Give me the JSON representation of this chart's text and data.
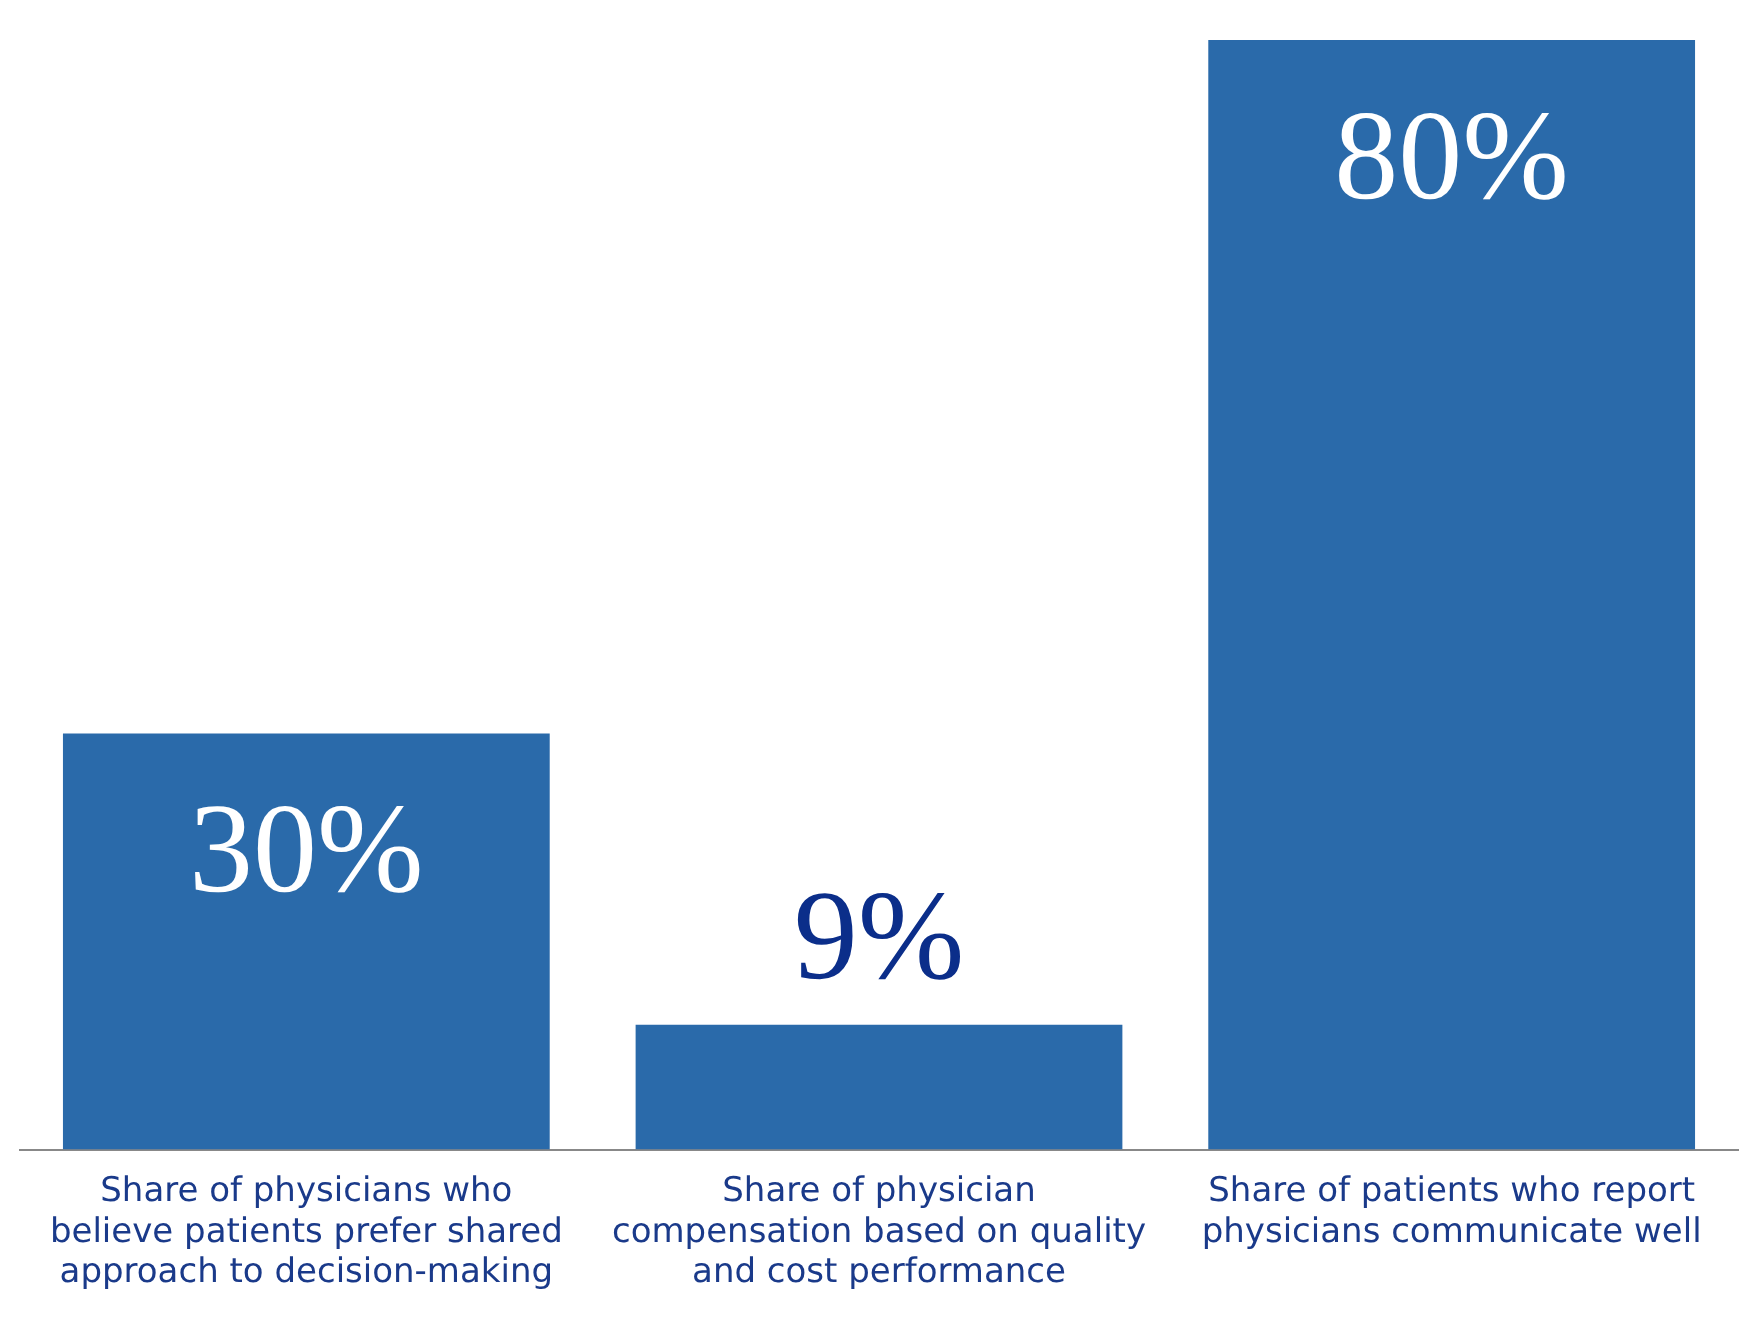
{
  "chart_data": {
    "type": "bar",
    "categories": [
      "Share of physicians who believe patients prefer shared approach to decision-making",
      "Share of physician compensation based on quality and cost performance",
      "Share of patients who report physicians communicate well"
    ],
    "values": [
      30,
      9,
      80
    ],
    "value_labels": [
      "30%",
      "9%",
      "80%"
    ],
    "color": "#2a6aaa",
    "grid": false,
    "legend": false
  }
}
